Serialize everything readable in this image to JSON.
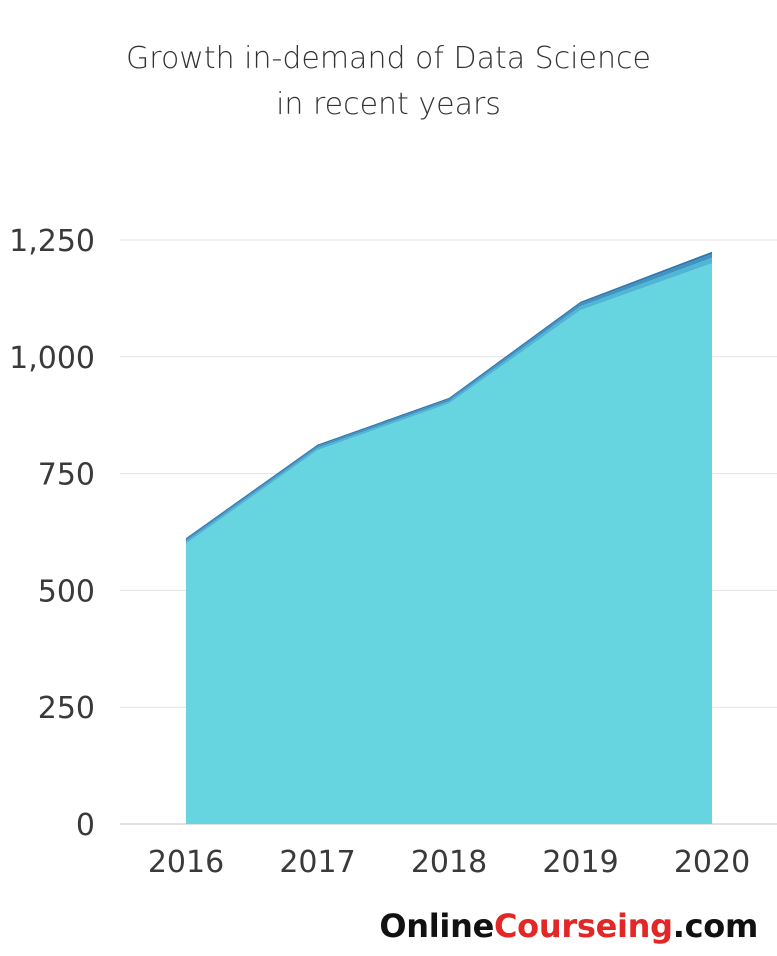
{
  "chart_data": {
    "type": "area",
    "title_lines": [
      "Growth in-demand of Data Science",
      "in recent years"
    ],
    "x": [
      "2016",
      "2017",
      "2018",
      "2019",
      "2020"
    ],
    "series": [
      {
        "values": [
          600,
          800,
          900,
          1100,
          1200
        ],
        "color": "#66d5e0"
      },
      {
        "values": [
          5,
          5,
          5,
          8,
          12
        ],
        "color": "#4fb6d6"
      },
      {
        "values": [
          4,
          4,
          4,
          6,
          8
        ],
        "color": "#3e93c3"
      },
      {
        "values": [
          3,
          3,
          3,
          4,
          5
        ],
        "color": "#2f78ad"
      }
    ],
    "stacked": true,
    "ylim": [
      0,
      1250
    ],
    "yticks": [
      "0",
      "250",
      "500",
      "750",
      "1,000",
      "1,250"
    ],
    "ytick_values": [
      0,
      250,
      500,
      750,
      1000,
      1250
    ],
    "grid": true,
    "legend": "none"
  },
  "brand": {
    "part1": "Online",
    "part2": "Courseing",
    "part3": ".com"
  }
}
